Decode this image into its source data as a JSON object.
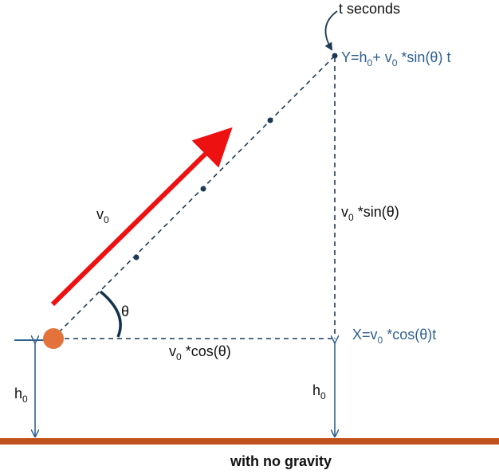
{
  "colors": {
    "velocity_arrow": "#ee1111",
    "ball": "#e3733a",
    "ground": "#c0501c",
    "dimension_lines": "#2f5f8f",
    "blue_text": "#2f5f8f",
    "dark_text": "#111111"
  },
  "labels": {
    "t_seconds": "t seconds",
    "y_formula": {
      "p1": "Y=h",
      "sub1": "0",
      "p2": "+ v",
      "sub2": "0",
      "p3": " *sin(θ) t"
    },
    "v0": {
      "base": "v",
      "sub": "0"
    },
    "theta": "θ",
    "vertical_component": {
      "base": "v",
      "sub": "0",
      "rest": " *sin(θ)"
    },
    "horizontal_component": {
      "base": "v",
      "sub": "0",
      "rest": " *cos(θ)"
    },
    "x_formula": {
      "p1": "X=v",
      "sub": "0",
      "p2": " *cos(θ)t"
    },
    "h0_left": {
      "base": "h",
      "sub": "0"
    },
    "h0_right": {
      "base": "h",
      "sub": "0"
    },
    "caption": "with no gravity"
  }
}
